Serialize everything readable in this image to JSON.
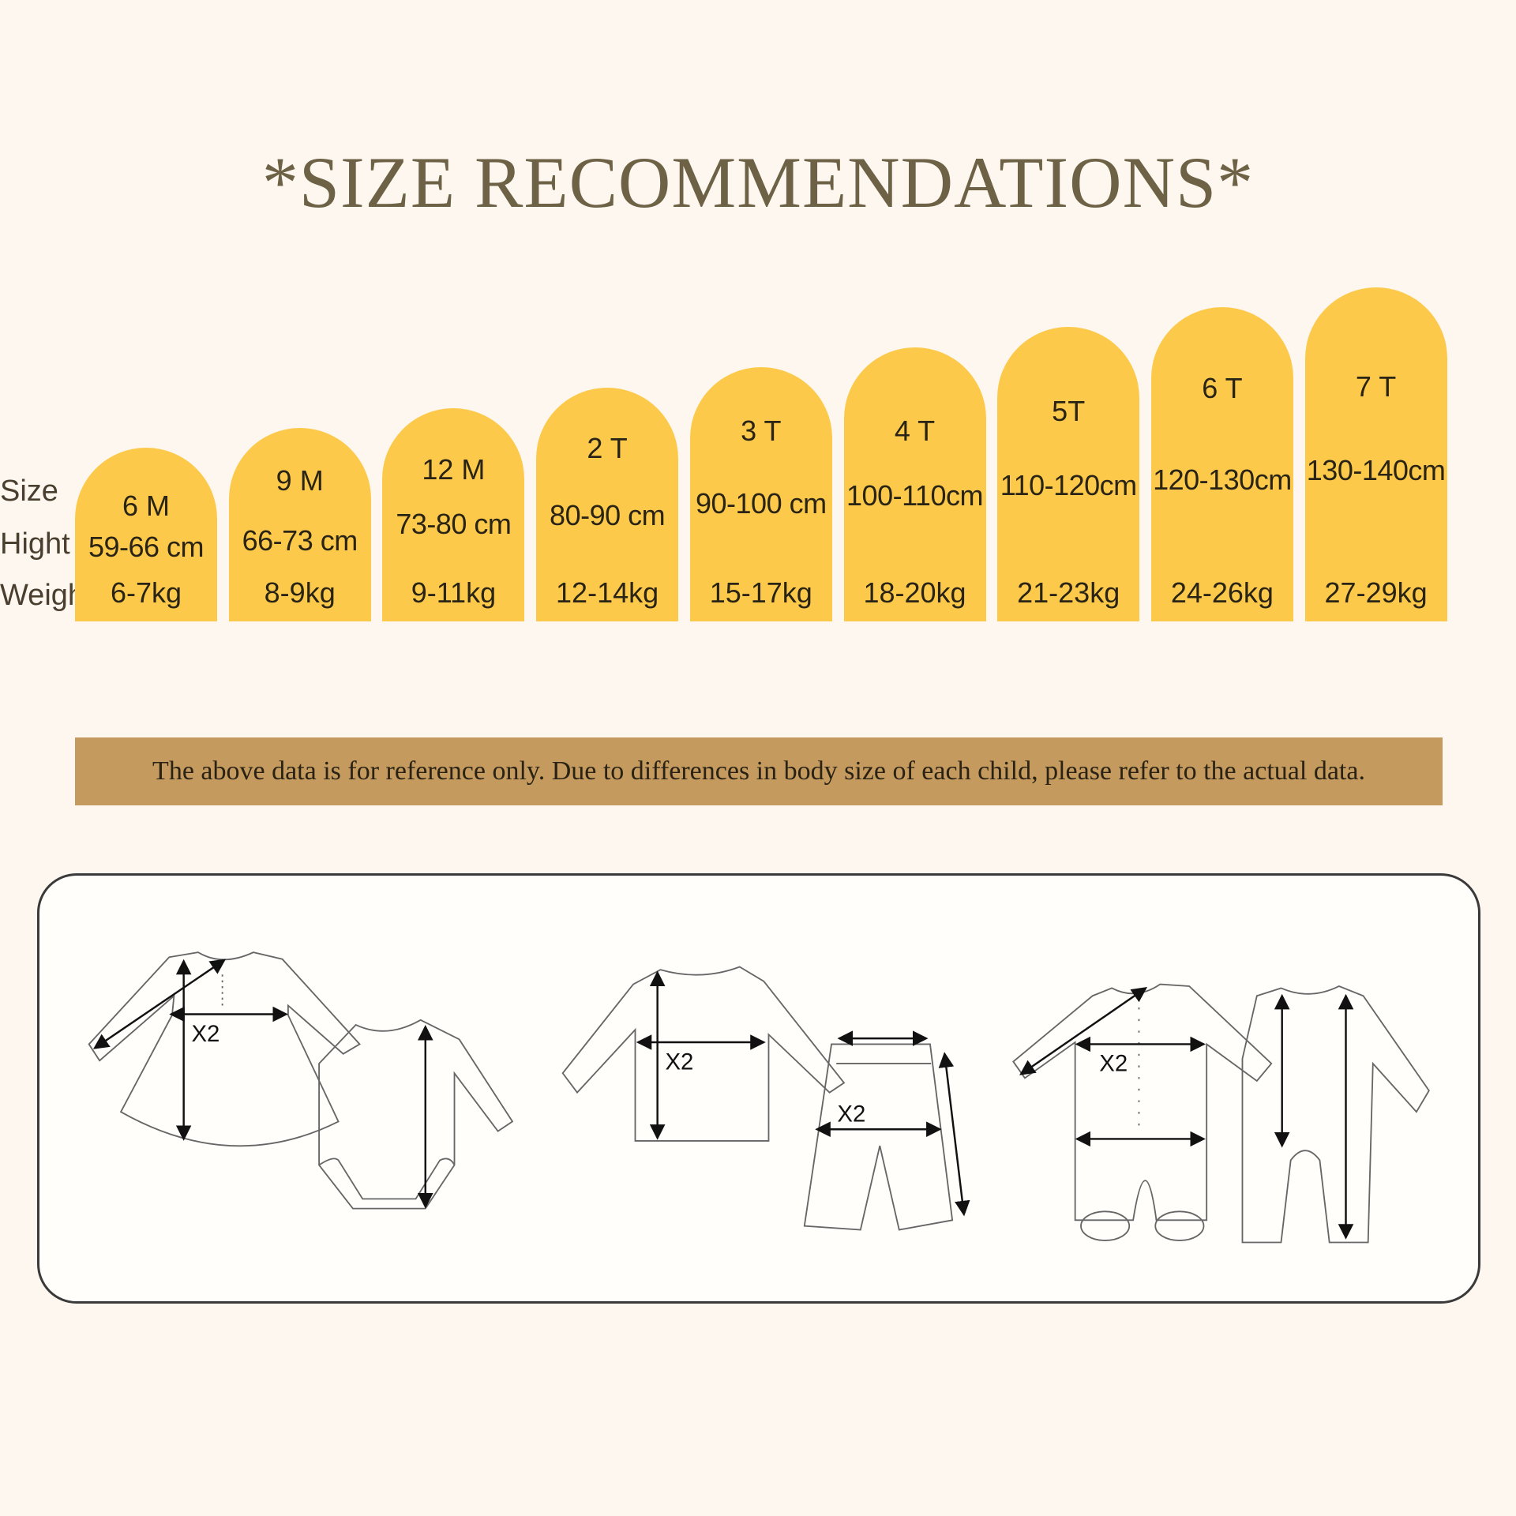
{
  "title": "*SIZE RECOMMENDATIONS*",
  "row_labels": {
    "size": "Size",
    "height": "Hight",
    "weight": "Weight"
  },
  "colors": {
    "arch": "#fcc94a",
    "banner": "#c49a5e",
    "title": "#6e6246",
    "background": "#fdf7f0"
  },
  "sizes": [
    {
      "size": "6 M",
      "height": "59-66 cm",
      "weight": "6-7kg"
    },
    {
      "size": "9 M",
      "height": "66-73 cm",
      "weight": "8-9kg"
    },
    {
      "size": "12 M",
      "height": "73-80 cm",
      "weight": "9-11kg"
    },
    {
      "size": "2 T",
      "height": "80-90 cm",
      "weight": "12-14kg"
    },
    {
      "size": "3 T",
      "height": "90-100 cm",
      "weight": "15-17kg"
    },
    {
      "size": "4 T",
      "height": "100-110cm",
      "weight": "18-20kg"
    },
    {
      "size": "5T",
      "height": "110-120cm",
      "weight": "21-23kg"
    },
    {
      "size": "6 T",
      "height": "120-130cm",
      "weight": "24-26kg"
    },
    {
      "size": "7 T",
      "height": "130-140cm",
      "weight": "27-29kg"
    }
  ],
  "disclaimer": "The above data is for reference only. Due to differences in body size of each child, please refer to the actual data.",
  "diagram": {
    "labels": [
      "X2",
      "X2",
      "X2",
      "X2"
    ]
  }
}
